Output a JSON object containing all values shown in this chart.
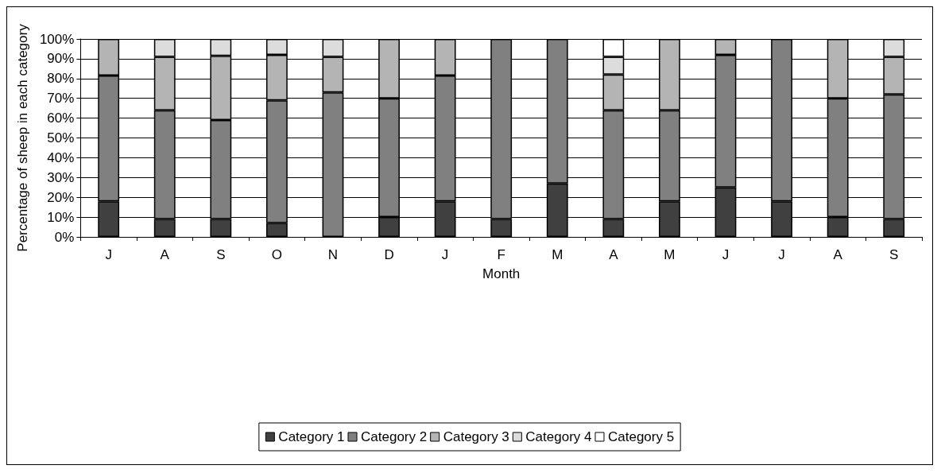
{
  "chart_data": {
    "type": "bar",
    "stacked": true,
    "xlabel": "Month",
    "ylabel": "Percentage of sheep in each category",
    "categories": [
      "J",
      "A",
      "S",
      "O",
      "N",
      "D",
      "J",
      "F",
      "M",
      "A",
      "M",
      "J",
      "J",
      "A",
      "S"
    ],
    "series": [
      {
        "name": "Category 1",
        "color": "#404040",
        "values": [
          18,
          9,
          9,
          7,
          null,
          10,
          18,
          9,
          27,
          9,
          18,
          25,
          18,
          10,
          9
        ]
      },
      {
        "name": "Category 2",
        "color": "#808080",
        "values": [
          63.5,
          55,
          50,
          62,
          73,
          60,
          63.5,
          91,
          73,
          55,
          46,
          67,
          82,
          60,
          63
        ]
      },
      {
        "name": "Category 3",
        "color": "#b4b4b4",
        "values": [
          18.5,
          27,
          32.5,
          23,
          18,
          30,
          18.5,
          null,
          null,
          18,
          36,
          8,
          null,
          30,
          19
        ]
      },
      {
        "name": "Category 4",
        "color": "#dcdcdc",
        "values": [
          null,
          9,
          8.5,
          8,
          9,
          null,
          null,
          null,
          null,
          9,
          null,
          null,
          null,
          null,
          9
        ]
      },
      {
        "name": "Category 5",
        "color": "#ffffff",
        "values": [
          null,
          null,
          null,
          null,
          null,
          null,
          null,
          null,
          null,
          9,
          null,
          null,
          null,
          null,
          null
        ]
      }
    ],
    "ylim": [
      0,
      100
    ],
    "yticks": [
      {
        "value": 0,
        "label": "0%"
      },
      {
        "value": 10,
        "label": "10%"
      },
      {
        "value": 20,
        "label": "20%"
      },
      {
        "value": 30,
        "label": "30%"
      },
      {
        "value": 40,
        "label": "40%"
      },
      {
        "value": 50,
        "label": "50%"
      },
      {
        "value": 60,
        "label": "60%"
      },
      {
        "value": 70,
        "label": "70%"
      },
      {
        "value": 80,
        "label": "80%"
      },
      {
        "value": 90,
        "label": "90%"
      },
      {
        "value": 100,
        "label": "100%"
      }
    ],
    "grid": "y",
    "legend": "bottom"
  }
}
